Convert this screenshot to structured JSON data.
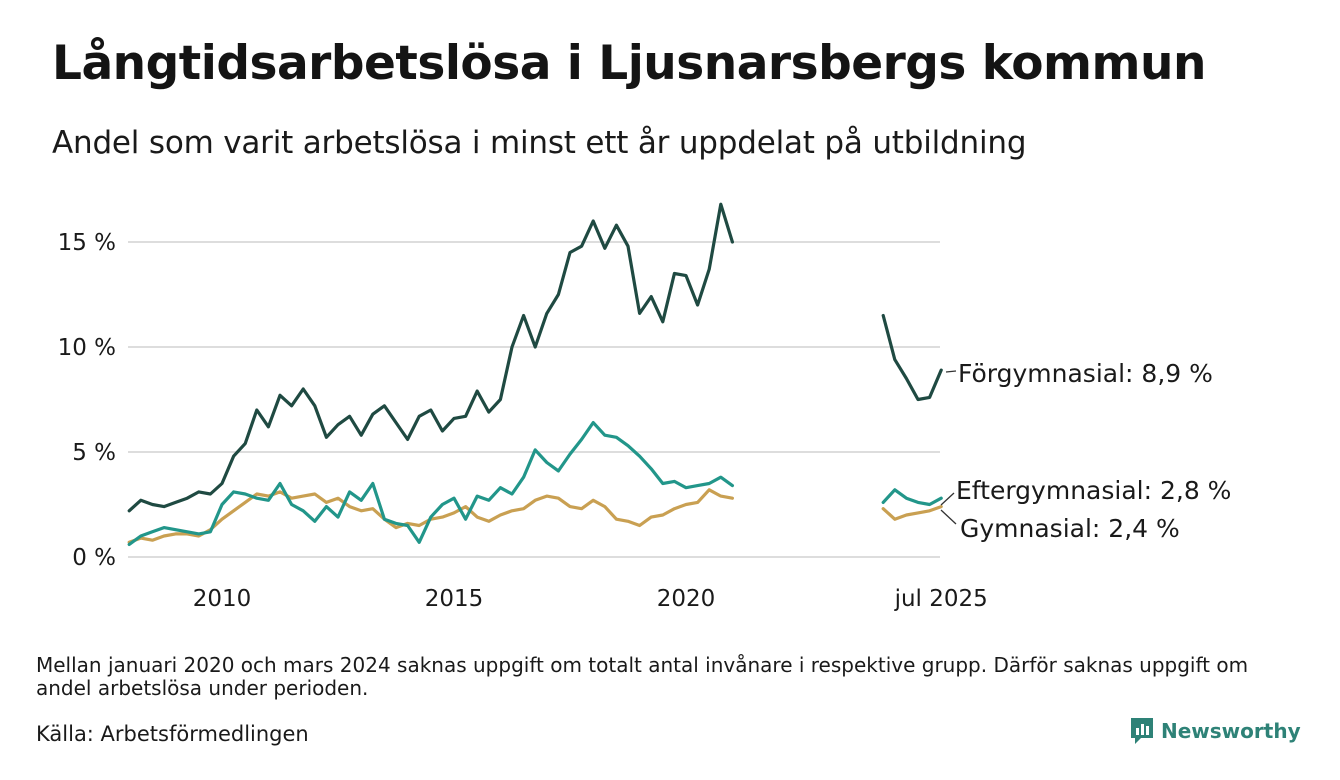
{
  "title": "Långtidsarbetslösa i Ljusnarsbergs kommun",
  "subtitle": "Andel som varit arbetslösa i minst ett år uppdelat på utbildning",
  "footnote": "Mellan januari 2020 och mars 2024 saknas uppgift om totalt antal invånare i respektive grupp. Därför saknas uppgift om andel arbetslösa under perioden.",
  "source": "Källa: Arbetsförmedlingen",
  "brand": "Newsworthy",
  "colors": {
    "forgymnasial": "#1f4a42",
    "eftergymnasial": "#22968a",
    "gymnasial": "#c9a052",
    "grid": "#dddddd",
    "brand": "#2e8277"
  },
  "chart_data": {
    "type": "line",
    "title": "Långtidsarbetslösa i Ljusnarsbergs kommun",
    "xlabel": "",
    "ylabel": "",
    "x_ticks": [
      "2010",
      "2015",
      "2020",
      "jul 2025"
    ],
    "y_ticks": [
      "0 %",
      "5 %",
      "10 %",
      "15 %"
    ],
    "y_tick_values": [
      0,
      5,
      10,
      15
    ],
    "ylim": [
      0,
      17
    ],
    "xlim": [
      "2008-01",
      "2025-07"
    ],
    "grid": "horizontal",
    "legend": "end-of-line labels",
    "series": [
      {
        "key": "forgymnasial",
        "label": "Förgymnasial: 8,9 %",
        "color": "#1f4a42",
        "segments": [
          [
            [
              "2008-01",
              2.2
            ],
            [
              "2008-04",
              2.7
            ],
            [
              "2008-07",
              2.5
            ],
            [
              "2008-10",
              2.4
            ],
            [
              "2009-01",
              2.6
            ],
            [
              "2009-04",
              2.8
            ],
            [
              "2009-07",
              3.1
            ],
            [
              "2009-10",
              3.0
            ],
            [
              "2010-01",
              3.5
            ],
            [
              "2010-04",
              4.8
            ],
            [
              "2010-07",
              5.4
            ],
            [
              "2010-10",
              7.0
            ],
            [
              "2011-01",
              6.2
            ],
            [
              "2011-04",
              7.7
            ],
            [
              "2011-07",
              7.2
            ],
            [
              "2011-10",
              8.0
            ],
            [
              "2012-01",
              7.2
            ],
            [
              "2012-04",
              5.7
            ],
            [
              "2012-07",
              6.3
            ],
            [
              "2012-10",
              6.7
            ],
            [
              "2013-01",
              5.8
            ],
            [
              "2013-04",
              6.8
            ],
            [
              "2013-07",
              7.2
            ],
            [
              "2013-10",
              6.4
            ],
            [
              "2014-01",
              5.6
            ],
            [
              "2014-04",
              6.7
            ],
            [
              "2014-07",
              7.0
            ],
            [
              "2014-10",
              6.0
            ],
            [
              "2015-01",
              6.6
            ],
            [
              "2015-04",
              6.7
            ],
            [
              "2015-07",
              7.9
            ],
            [
              "2015-10",
              6.9
            ],
            [
              "2016-01",
              7.5
            ],
            [
              "2016-04",
              10.0
            ],
            [
              "2016-07",
              11.5
            ],
            [
              "2016-10",
              10.0
            ],
            [
              "2017-01",
              11.6
            ],
            [
              "2017-04",
              12.5
            ],
            [
              "2017-07",
              14.5
            ],
            [
              "2017-10",
              14.8
            ],
            [
              "2018-01",
              16.0
            ],
            [
              "2018-04",
              14.7
            ],
            [
              "2018-07",
              15.8
            ],
            [
              "2018-10",
              14.8
            ],
            [
              "2019-01",
              11.6
            ],
            [
              "2019-04",
              12.4
            ],
            [
              "2019-07",
              11.2
            ],
            [
              "2019-10",
              13.5
            ],
            [
              "2020-01",
              13.4
            ],
            [
              "2020-04",
              12.0
            ],
            [
              "2020-07",
              13.7
            ],
            [
              "2020-10",
              16.8
            ],
            [
              "2021-01",
              15.0
            ]
          ],
          [
            [
              "2024-04",
              11.5
            ],
            [
              "2024-07",
              9.4
            ],
            [
              "2024-10",
              8.5
            ],
            [
              "2025-01",
              7.5
            ],
            [
              "2025-04",
              7.6
            ],
            [
              "2025-07",
              8.9
            ]
          ]
        ]
      },
      {
        "key": "eftergymnasial",
        "label": "Eftergymnasial: 2,8 %",
        "color": "#22968a",
        "segments": [
          [
            [
              "2008-01",
              0.6
            ],
            [
              "2008-04",
              1.0
            ],
            [
              "2008-07",
              1.2
            ],
            [
              "2008-10",
              1.4
            ],
            [
              "2009-01",
              1.3
            ],
            [
              "2009-04",
              1.2
            ],
            [
              "2009-07",
              1.1
            ],
            [
              "2009-10",
              1.2
            ],
            [
              "2010-01",
              2.5
            ],
            [
              "2010-04",
              3.1
            ],
            [
              "2010-07",
              3.0
            ],
            [
              "2010-10",
              2.8
            ],
            [
              "2011-01",
              2.7
            ],
            [
              "2011-04",
              3.5
            ],
            [
              "2011-07",
              2.5
            ],
            [
              "2011-10",
              2.2
            ],
            [
              "2012-01",
              1.7
            ],
            [
              "2012-04",
              2.4
            ],
            [
              "2012-07",
              1.9
            ],
            [
              "2012-10",
              3.1
            ],
            [
              "2013-01",
              2.7
            ],
            [
              "2013-04",
              3.5
            ],
            [
              "2013-07",
              1.8
            ],
            [
              "2013-10",
              1.6
            ],
            [
              "2014-01",
              1.5
            ],
            [
              "2014-04",
              0.7
            ],
            [
              "2014-07",
              1.9
            ],
            [
              "2014-10",
              2.5
            ],
            [
              "2015-01",
              2.8
            ],
            [
              "2015-04",
              1.8
            ],
            [
              "2015-07",
              2.9
            ],
            [
              "2015-10",
              2.7
            ],
            [
              "2016-01",
              3.3
            ],
            [
              "2016-04",
              3.0
            ],
            [
              "2016-07",
              3.8
            ],
            [
              "2016-10",
              5.1
            ],
            [
              "2017-01",
              4.5
            ],
            [
              "2017-04",
              4.1
            ],
            [
              "2017-07",
              4.9
            ],
            [
              "2017-10",
              5.6
            ],
            [
              "2018-01",
              6.4
            ],
            [
              "2018-04",
              5.8
            ],
            [
              "2018-07",
              5.7
            ],
            [
              "2018-10",
              5.3
            ],
            [
              "2019-01",
              4.8
            ],
            [
              "2019-04",
              4.2
            ],
            [
              "2019-07",
              3.5
            ],
            [
              "2019-10",
              3.6
            ],
            [
              "2020-01",
              3.3
            ],
            [
              "2020-04",
              3.4
            ],
            [
              "2020-07",
              3.5
            ],
            [
              "2020-10",
              3.8
            ],
            [
              "2021-01",
              3.4
            ]
          ],
          [
            [
              "2024-04",
              2.6
            ],
            [
              "2024-07",
              3.2
            ],
            [
              "2024-10",
              2.8
            ],
            [
              "2025-01",
              2.6
            ],
            [
              "2025-04",
              2.5
            ],
            [
              "2025-07",
              2.8
            ]
          ]
        ]
      },
      {
        "key": "gymnasial",
        "label": "Gymnasial: 2,4 %",
        "color": "#c9a052",
        "segments": [
          [
            [
              "2008-01",
              0.7
            ],
            [
              "2008-04",
              0.9
            ],
            [
              "2008-07",
              0.8
            ],
            [
              "2008-10",
              1.0
            ],
            [
              "2009-01",
              1.1
            ],
            [
              "2009-04",
              1.1
            ],
            [
              "2009-07",
              1.0
            ],
            [
              "2009-10",
              1.3
            ],
            [
              "2010-01",
              1.8
            ],
            [
              "2010-04",
              2.2
            ],
            [
              "2010-07",
              2.6
            ],
            [
              "2010-10",
              3.0
            ],
            [
              "2011-01",
              2.9
            ],
            [
              "2011-04",
              3.1
            ],
            [
              "2011-07",
              2.8
            ],
            [
              "2011-10",
              2.9
            ],
            [
              "2012-01",
              3.0
            ],
            [
              "2012-04",
              2.6
            ],
            [
              "2012-07",
              2.8
            ],
            [
              "2012-10",
              2.4
            ],
            [
              "2013-01",
              2.2
            ],
            [
              "2013-04",
              2.3
            ],
            [
              "2013-07",
              1.8
            ],
            [
              "2013-10",
              1.4
            ],
            [
              "2014-01",
              1.6
            ],
            [
              "2014-04",
              1.5
            ],
            [
              "2014-07",
              1.8
            ],
            [
              "2014-10",
              1.9
            ],
            [
              "2015-01",
              2.1
            ],
            [
              "2015-04",
              2.4
            ],
            [
              "2015-07",
              1.9
            ],
            [
              "2015-10",
              1.7
            ],
            [
              "2016-01",
              2.0
            ],
            [
              "2016-04",
              2.2
            ],
            [
              "2016-07",
              2.3
            ],
            [
              "2016-10",
              2.7
            ],
            [
              "2017-01",
              2.9
            ],
            [
              "2017-04",
              2.8
            ],
            [
              "2017-07",
              2.4
            ],
            [
              "2017-10",
              2.3
            ],
            [
              "2018-01",
              2.7
            ],
            [
              "2018-04",
              2.4
            ],
            [
              "2018-07",
              1.8
            ],
            [
              "2018-10",
              1.7
            ],
            [
              "2019-01",
              1.5
            ],
            [
              "2019-04",
              1.9
            ],
            [
              "2019-07",
              2.0
            ],
            [
              "2019-10",
              2.3
            ],
            [
              "2020-01",
              2.5
            ],
            [
              "2020-04",
              2.6
            ],
            [
              "2020-07",
              3.2
            ],
            [
              "2020-10",
              2.9
            ],
            [
              "2021-01",
              2.8
            ]
          ],
          [
            [
              "2024-04",
              2.3
            ],
            [
              "2024-07",
              1.8
            ],
            [
              "2024-10",
              2.0
            ],
            [
              "2025-01",
              2.1
            ],
            [
              "2025-04",
              2.2
            ],
            [
              "2025-07",
              2.4
            ]
          ]
        ]
      }
    ]
  }
}
